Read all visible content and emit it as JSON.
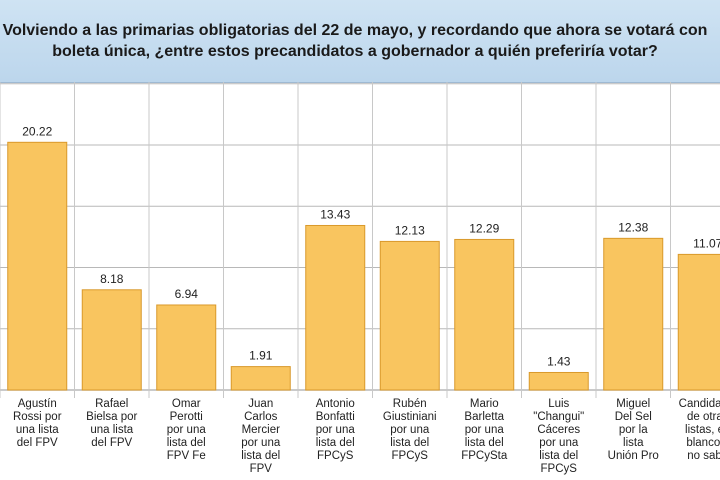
{
  "header": {
    "title": "Volviendo a las primarias obligatorias del 22 de mayo, y recordando que ahora se votará con boleta única, ¿entre estos precandidatos a gobernador a quién preferiría votar?"
  },
  "chart_data": {
    "type": "bar",
    "title": "Volviendo a las primarias obligatorias del 22 de mayo, y recordando que ahora se votará con boleta única, ¿entre estos precandidatos a gobernador a quién preferiría votar?",
    "xlabel": "",
    "ylabel": "",
    "categories": [
      "Agustín Rossi por una lista del FPV",
      "Rafael Bielsa por una lista del FPV",
      "Omar Perotti por una lista del FPV Fe",
      "Juan Carlos Mercier por una lista del FPV",
      "Antonio Bonfatti por una lista del FPCyS",
      "Rubén Giustiniani por una lista del FPCyS",
      "Mario Barletta por una lista del FPCySta",
      "Luis \"Changui\" Cáceres por una lista del FPCyS",
      "Miguel Del Sel por la lista Unión Pro",
      "Candidatos de otras listas, en blanco y no sabe"
    ],
    "category_lines": [
      [
        "Agustín",
        "Rossi por",
        "una lista",
        "del FPV"
      ],
      [
        "Rafael",
        "Bielsa por",
        "una lista",
        "del FPV"
      ],
      [
        "Omar",
        "Perotti",
        "por una",
        "lista del",
        "FPV Fe"
      ],
      [
        "Juan",
        "Carlos",
        "Mercier",
        "por una",
        "lista del",
        "FPV"
      ],
      [
        "Antonio",
        "Bonfatti",
        "por una",
        "lista del",
        "FPCyS"
      ],
      [
        "Rubén",
        "Giustiniani",
        "por una",
        "lista del",
        "FPCyS"
      ],
      [
        "Mario",
        "Barletta",
        "por una",
        "lista del",
        "FPCySta"
      ],
      [
        "Luis",
        "\"Changui\"",
        "Cáceres",
        "por una",
        "lista del",
        "FPCyS"
      ],
      [
        "Miguel",
        "Del Sel",
        "por la",
        "lista",
        "Unión Pro"
      ],
      [
        "Candidatos",
        "de otras",
        "listas, en",
        "blanco y",
        "no sabe"
      ]
    ],
    "values": [
      20.22,
      8.18,
      6.94,
      1.91,
      13.43,
      12.13,
      12.29,
      1.43,
      12.38,
      11.07
    ],
    "value_labels": [
      "20.22",
      "8.18",
      "6.94",
      "1.91",
      "13.43",
      "12.13",
      "12.29",
      "1.43",
      "12.38",
      "11.07"
    ],
    "ylim": [
      0,
      26
    ],
    "yticks": [
      0,
      5,
      10,
      15,
      20,
      25
    ],
    "grid": true,
    "colors": {
      "bar": "#f9c55f",
      "bar_edge": "#d9992b",
      "grid": "#b8b8b8",
      "separator": "#c8c8c8",
      "header_bg": "#c6ddf0"
    }
  }
}
